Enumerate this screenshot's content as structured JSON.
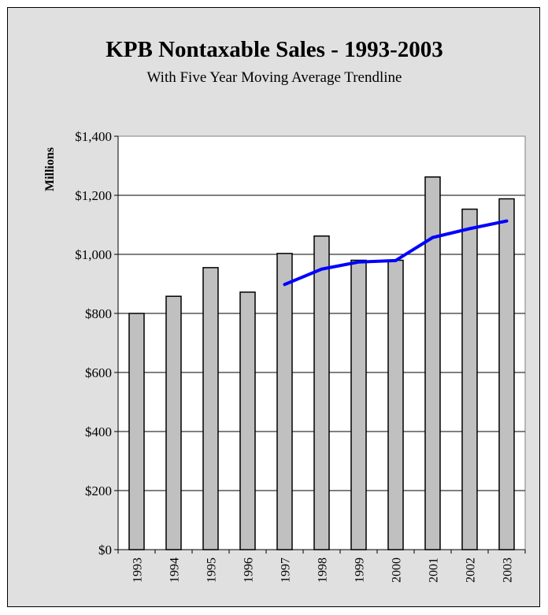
{
  "chart_data": {
    "type": "bar",
    "title": "KPB Nontaxable Sales - 1993-2003",
    "subtitle": "With Five Year Moving Average Trendline",
    "ylabel": "Millions",
    "xlabel": "",
    "ylim": [
      0,
      1400
    ],
    "yticks": [
      "$0",
      "$200",
      "$400",
      "$600",
      "$800",
      "$1,000",
      "$1,200",
      "$1,400"
    ],
    "categories": [
      "1993",
      "1994",
      "1995",
      "1996",
      "1997",
      "1998",
      "1999",
      "2000",
      "2001",
      "2002",
      "2003"
    ],
    "series": [
      {
        "values": [
          800,
          858,
          955,
          872,
          1003,
          1062,
          980,
          980,
          1262,
          1153,
          1188
        ],
        "color": "#c0c0c0"
      },
      {
        "type": "line",
        "values": [
          null,
          null,
          null,
          null,
          898,
          950,
          974,
          979,
          1057,
          1087,
          1113
        ],
        "color": "#0000ff"
      }
    ],
    "grid": true,
    "legend": "none"
  }
}
